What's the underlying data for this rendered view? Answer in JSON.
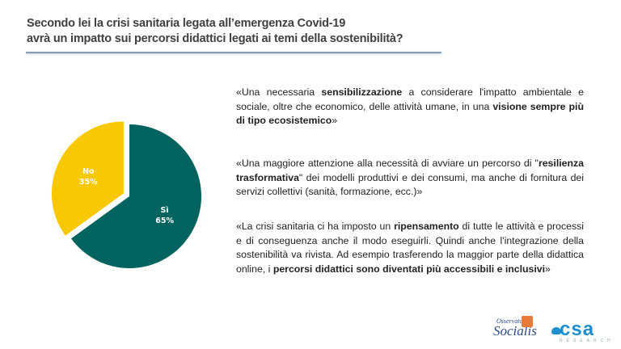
{
  "title_line1": "Secondo lei la crisi sanitaria legata all’emergenza Covid-19",
  "title_line2": "avrà un impatto sui percorsi didattici legati ai temi della sostenibilità?",
  "chart_data": {
    "type": "pie",
    "categories": [
      "Sì",
      "No"
    ],
    "values": [
      65,
      35
    ],
    "labels": [
      "65%",
      "35%"
    ],
    "colors": [
      "#03645f",
      "#f8c802"
    ],
    "exploded": "No"
  },
  "quotes": [
    [
      "«Una necessaria ",
      "sensibilizzazione",
      " a considerare l'impatto ambientale e sociale, oltre che economico, delle attività umane, in una ",
      "visione sempre più di tipo ecosistemico",
      "»"
    ],
    [
      "«Una maggiore attenzione alla necessità di avviare un percorso di \"",
      "resilienza trasformativa",
      "\" dei modelli produttivi e dei consumi, ma anche di fornitura dei servizi collettivi (sanità, formazione, ecc.)»"
    ],
    [
      "«La crisi sanitaria ci ha imposto un ",
      "ripensamento",
      " di tutte le attività e processi e di conseguenza anche il modo eseguirli. Quindi anche l'integrazione della sostenibilità va rivista. Ad esempio trasferendo la maggior parte della didattica online, i ",
      "percorsi didattici sono diventati più accessibili e inclusivi",
      "»"
    ]
  ],
  "logos": {
    "osservatorio_top": "Osservatorio",
    "osservatorio_main": "Socialis",
    "csa": "csa",
    "csa_sub": "RESEARCH"
  }
}
